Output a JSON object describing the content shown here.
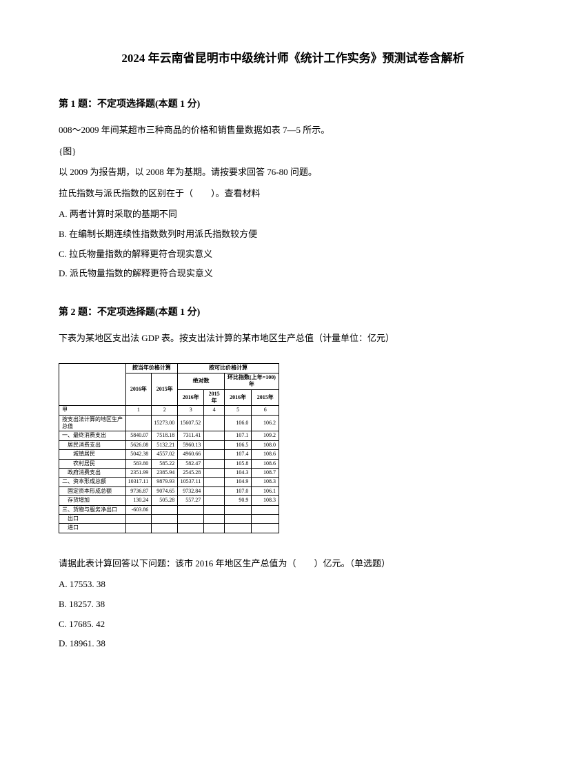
{
  "title": "2024 年云南省昆明市中级统计师《统计工作实务》预测试卷含解析",
  "q1": {
    "header": "第 1 题：不定项选择题(本题 1 分)",
    "line1": "008～2009 年间某超市三种商品的价格和销售量数据如表 7—5 所示。",
    "line2": "{图}",
    "line3": "以 2009 为报告期，以 2008 年为基期。请按要求回答 76-80 问题。",
    "line4": "拉氏指数与派氏指数的区别在于（　　）。查看材料",
    "optA": "A. 两者计算时采取的基期不同",
    "optB": "B. 在编制长期连续性指数数列时用派氏指数较方便",
    "optC": "C. 拉氏物量指数的解释更符合现实意义",
    "optD": "D. 派氏物量指数的解释更符合现实意义"
  },
  "q2": {
    "header": "第 2 题：不定项选择题(本题 1 分)",
    "line1": "下表为某地区支出法 GDP 表。按支出法计算的某市地区生产总值（计量单位：亿元）",
    "subtext": "请据此表计算回答以下问题：该市 2016 年地区生产总值为（　　）亿元。（单选题）",
    "optA": "A. 17553. 38",
    "optB": "B. 18257. 38",
    "optC": "C. 17685. 42",
    "optD": "D. 18961. 38"
  },
  "table": {
    "h1": "按当年价格计算",
    "h2": "按可比价格计算",
    "h_2016": "2016年",
    "h_2015": "2015年",
    "h_abs": "绝对数",
    "h_idx": "环比指数(上年=100)年",
    "h_sub2016": "2016年",
    "h_sub2015": "2015年",
    "h_sub2016b": "2016年",
    "h_sub2015b": "2015年",
    "row_jia": "甲",
    "c1": "1",
    "c2": "2",
    "c3": "3",
    "c4": "4",
    "c5": "5",
    "c6": "6",
    "r1_label": "按支出法计算的地区生产总值",
    "r1_v1": "",
    "r1_v2": "15273.00",
    "r1_v3": "15607.52",
    "r1_v4": "",
    "r1_v5": "106.0",
    "r1_v6": "106.2",
    "r2_label": "一、最终消费支出",
    "r2_v1": "5840.07",
    "r2_v2": "7518.18",
    "r2_v3": "7311.41",
    "r2_v4": "",
    "r2_v5": "107.1",
    "r2_v6": "109.2",
    "r3_label": "　居民消费支出",
    "r3_v1": "5626.08",
    "r3_v2": "5132.21",
    "r3_v3": "5960.13",
    "r3_v4": "",
    "r3_v5": "106.5",
    "r3_v6": "108.0",
    "r4_label": "　　城镇居民",
    "r4_v1": "5042.38",
    "r4_v2": "4557.02",
    "r4_v3": "4960.66",
    "r4_v4": "",
    "r4_v5": "107.4",
    "r4_v6": "108.6",
    "r5_label": "　　农村居民",
    "r5_v1": "583.80",
    "r5_v2": "585.22",
    "r5_v3": "582.47",
    "r5_v4": "",
    "r5_v5": "105.8",
    "r5_v6": "108.6",
    "r6_label": "　政府消费支出",
    "r6_v1": "2351.99",
    "r6_v2": "2385.94",
    "r6_v3": "2545.28",
    "r6_v4": "",
    "r6_v5": "104.3",
    "r6_v6": "108.7",
    "r7_label": "二、资本形成总额",
    "r7_v1": "10317.11",
    "r7_v2": "9879.93",
    "r7_v3": "10537.11",
    "r7_v4": "",
    "r7_v5": "104.9",
    "r7_v6": "108.3",
    "r8_label": "　固定资本形成总额",
    "r8_v1": "9736.87",
    "r8_v2": "9074.65",
    "r8_v3": "9732.84",
    "r8_v4": "",
    "r8_v5": "107.0",
    "r8_v6": "106.1",
    "r9_label": "　存货增加",
    "r9_v1": "130.24",
    "r9_v2": "505.28",
    "r9_v3": "557.27",
    "r9_v4": "",
    "r9_v5": "90.9",
    "r9_v6": "108.3",
    "r10_label": "三、货物与服务净出口",
    "r10_v1": "-603.86",
    "r10_v2": "",
    "r10_v3": "",
    "r10_v4": "",
    "r10_v5": "",
    "r10_v6": "",
    "r11_label": "　出口",
    "r11_v1": "",
    "r11_v2": "",
    "r11_v3": "",
    "r11_v4": "",
    "r11_v5": "",
    "r11_v6": "",
    "r12_label": "　进口",
    "r12_v1": "",
    "r12_v2": "",
    "r12_v3": "",
    "r12_v4": "",
    "r12_v5": "",
    "r12_v6": ""
  }
}
